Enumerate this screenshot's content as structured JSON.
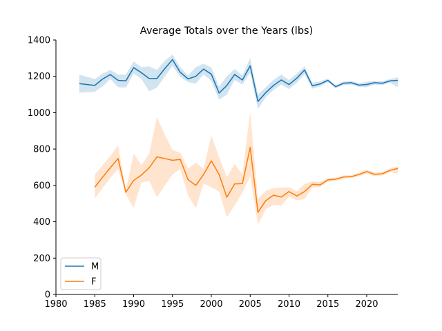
{
  "chart_data": {
    "type": "line",
    "title": "Average Totals over the Years (lbs)",
    "xlabel": "",
    "ylabel": "",
    "xlim": [
      1980,
      2024
    ],
    "ylim": [
      0,
      1400
    ],
    "xticks": [
      1980,
      1985,
      1990,
      1995,
      2000,
      2005,
      2010,
      2015,
      2020
    ],
    "yticks": [
      0,
      200,
      400,
      600,
      800,
      1000,
      1200,
      1400
    ],
    "grid": false,
    "legend_position": "lower-left",
    "series": [
      {
        "name": "M",
        "color": "#1f77b4",
        "band_color": "#1f77b4",
        "x": [
          1983,
          1985,
          1986,
          1987,
          1988,
          1989,
          1990,
          1991,
          1992,
          1993,
          1994,
          1995,
          1996,
          1997,
          1998,
          1999,
          2000,
          2001,
          2002,
          2003,
          2004,
          2005,
          2006,
          2007,
          2008,
          2009,
          2010,
          2011,
          2012,
          2013,
          2014,
          2015,
          2016,
          2017,
          2018,
          2019,
          2020,
          2021,
          2022,
          2023,
          2024
        ],
        "y": [
          1160,
          1150,
          1185,
          1210,
          1178,
          1175,
          1248,
          1220,
          1188,
          1188,
          1242,
          1292,
          1222,
          1186,
          1200,
          1240,
          1212,
          1108,
          1150,
          1210,
          1180,
          1258,
          1062,
          1110,
          1150,
          1180,
          1155,
          1190,
          1235,
          1148,
          1158,
          1178,
          1143,
          1162,
          1165,
          1152,
          1155,
          1165,
          1162,
          1175,
          1178
        ],
        "lower": [
          1110,
          1115,
          1145,
          1185,
          1140,
          1138,
          1215,
          1185,
          1118,
          1138,
          1200,
          1258,
          1198,
          1168,
          1160,
          1210,
          1175,
          1072,
          1100,
          1180,
          1155,
          1220,
          1020,
          1085,
          1125,
          1155,
          1130,
          1165,
          1212,
          1132,
          1145,
          1168,
          1135,
          1152,
          1155,
          1142,
          1140,
          1155,
          1152,
          1165,
          1140
        ],
        "upper": [
          1210,
          1185,
          1215,
          1235,
          1210,
          1210,
          1282,
          1250,
          1255,
          1235,
          1285,
          1320,
          1250,
          1205,
          1250,
          1270,
          1248,
          1145,
          1200,
          1240,
          1205,
          1300,
          1100,
          1140,
          1180,
          1210,
          1180,
          1215,
          1255,
          1165,
          1172,
          1188,
          1152,
          1172,
          1175,
          1162,
          1170,
          1175,
          1172,
          1185,
          1195
        ]
      },
      {
        "name": "F",
        "color": "#ff7f0e",
        "band_color": "#ff7f0e",
        "x": [
          1985,
          1986,
          1987,
          1988,
          1989,
          1990,
          1991,
          1992,
          1993,
          1994,
          1995,
          1996,
          1997,
          1998,
          1999,
          2000,
          2001,
          2002,
          2003,
          2004,
          2005,
          2006,
          2007,
          2008,
          2009,
          2010,
          2011,
          2012,
          2013,
          2014,
          2015,
          2016,
          2017,
          2018,
          2019,
          2020,
          2021,
          2022,
          2023,
          2024
        ],
        "y": [
          590,
          645,
          697,
          748,
          562,
          627,
          657,
          697,
          757,
          748,
          738,
          743,
          632,
          600,
          660,
          735,
          660,
          535,
          608,
          610,
          810,
          452,
          516,
          546,
          536,
          566,
          542,
          566,
          606,
          603,
          630,
          634,
          646,
          648,
          660,
          676,
          661,
          664,
          683,
          693
        ],
        "lower": [
          528,
          585,
          640,
          690,
          550,
          475,
          615,
          625,
          535,
          598,
          660,
          690,
          545,
          475,
          610,
          590,
          565,
          425,
          490,
          560,
          650,
          385,
          468,
          493,
          488,
          538,
          518,
          524,
          590,
          590,
          622,
          625,
          638,
          640,
          650,
          665,
          650,
          655,
          672,
          665
        ],
        "upper": [
          660,
          710,
          762,
          820,
          575,
          775,
          712,
          775,
          978,
          880,
          795,
          780,
          692,
          725,
          690,
          875,
          755,
          645,
          718,
          660,
          1003,
          525,
          570,
          585,
          588,
          590,
          568,
          608,
          622,
          618,
          640,
          643,
          655,
          656,
          670,
          688,
          672,
          672,
          694,
          705
        ]
      }
    ]
  }
}
